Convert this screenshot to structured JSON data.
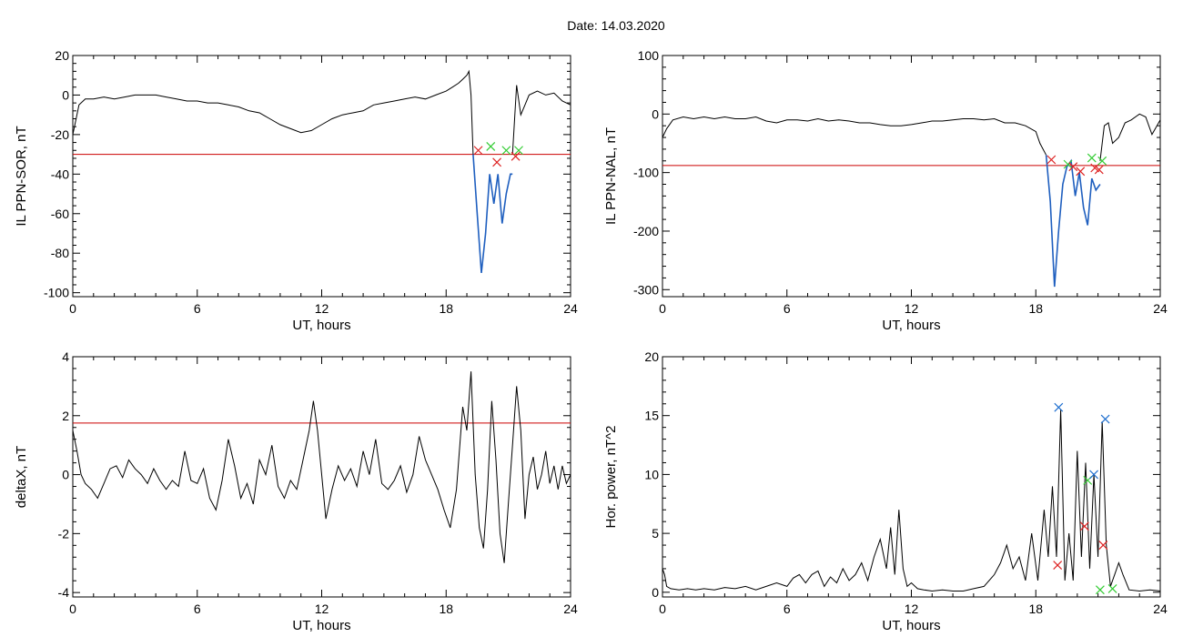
{
  "figure_title": "Date:  14.03.2020",
  "colors": {
    "trace": "#000000",
    "threshold": "#cc0000",
    "highlight": "#1f5fbf",
    "marker_red": "#dd2222",
    "marker_green": "#33cc33",
    "marker_blue": "#1f6fcf"
  },
  "chart_data": [
    {
      "id": "sor",
      "type": "line",
      "title": "",
      "xlabel": "UT, hours",
      "ylabel": "IL PPN-SOR, nT",
      "xlim": [
        0,
        24
      ],
      "ylim": [
        -102,
        20
      ],
      "xticks": [
        0,
        6,
        12,
        18,
        24
      ],
      "yticks": [
        20,
        0,
        -20,
        -40,
        -60,
        -80,
        -100
      ],
      "threshold": -30,
      "series": [
        {
          "x": [
            0,
            0.1,
            0.3,
            0.6,
            1,
            1.5,
            2,
            2.5,
            3,
            3.5,
            4,
            4.5,
            5,
            5.5,
            6,
            6.5,
            7,
            7.5,
            8,
            8.5,
            9,
            9.5,
            10,
            10.5,
            11,
            11.5,
            12,
            12.5,
            13,
            13.5,
            14,
            14.5,
            15,
            15.5,
            16,
            16.5,
            17,
            17.5,
            18,
            18.3,
            18.6,
            18.8,
            19,
            19.1,
            19.2,
            19.3
          ],
          "y": [
            -20,
            -15,
            -5,
            -2,
            -2,
            -1,
            -2,
            -1,
            0,
            0,
            0,
            -1,
            -2,
            -3,
            -3,
            -4,
            -4,
            -5,
            -6,
            -8,
            -9,
            -12,
            -15,
            -17,
            -19,
            -18,
            -15,
            -12,
            -10,
            -9,
            -8,
            -5,
            -4,
            -3,
            -2,
            -1,
            -2,
            0,
            2,
            4,
            6,
            8,
            10,
            12,
            0,
            -30
          ]
        },
        {
          "x": [
            19.3,
            19.5,
            19.7,
            19.9,
            20.1,
            20.3,
            20.5,
            20.7,
            20.9,
            21.0,
            21.1,
            21.2
          ],
          "y": [
            -30,
            -60,
            -90,
            -70,
            -40,
            -55,
            -40,
            -65,
            -50,
            -45,
            -40,
            -40
          ]
        },
        {
          "x": [
            21.2,
            21.4,
            21.6,
            21.8,
            22.0,
            22.4,
            22.8,
            23.2,
            23.6,
            24.0
          ],
          "y": [
            -30,
            5,
            -10,
            -5,
            0,
            2,
            0,
            1,
            -3,
            -5
          ]
        }
      ],
      "markers": [
        {
          "x": 19.55,
          "y": -28,
          "color": "marker_red"
        },
        {
          "x": 20.15,
          "y": -26,
          "color": "marker_green"
        },
        {
          "x": 20.45,
          "y": -34,
          "color": "marker_red"
        },
        {
          "x": 20.9,
          "y": -28,
          "color": "marker_green"
        },
        {
          "x": 21.35,
          "y": -31,
          "color": "marker_red"
        },
        {
          "x": 21.5,
          "y": -28,
          "color": "marker_green"
        }
      ]
    },
    {
      "id": "nal",
      "type": "line",
      "title": "",
      "xlabel": "UT, hours",
      "ylabel": "IL PPN-NAL, nT",
      "xlim": [
        0,
        24
      ],
      "ylim": [
        -312,
        100
      ],
      "xticks": [
        0,
        6,
        12,
        18,
        24
      ],
      "yticks": [
        100,
        0,
        -100,
        -200,
        -300
      ],
      "threshold": -88,
      "series": [
        {
          "x": [
            0,
            0.2,
            0.5,
            1,
            1.5,
            2,
            2.5,
            3,
            3.5,
            4,
            4.5,
            5,
            5.5,
            6,
            6.5,
            7,
            7.5,
            8,
            8.5,
            9,
            9.5,
            10,
            10.5,
            11,
            11.5,
            12,
            12.5,
            13,
            13.5,
            14,
            14.5,
            15,
            15.5,
            16,
            16.5,
            17,
            17.5,
            18,
            18.2,
            18.5
          ],
          "y": [
            -40,
            -25,
            -10,
            -5,
            -8,
            -5,
            -8,
            -5,
            -8,
            -8,
            -5,
            -12,
            -15,
            -10,
            -10,
            -12,
            -8,
            -12,
            -10,
            -12,
            -15,
            -15,
            -18,
            -20,
            -20,
            -18,
            -15,
            -12,
            -12,
            -10,
            -8,
            -8,
            -10,
            -8,
            -15,
            -15,
            -20,
            -30,
            -50,
            -70
          ]
        },
        {
          "x": [
            18.5,
            18.7,
            18.9,
            19.1,
            19.3,
            19.5,
            19.7,
            19.9,
            20.1,
            20.3,
            20.5,
            20.7,
            20.9,
            21.1
          ],
          "y": [
            -70,
            -150,
            -295,
            -200,
            -120,
            -90,
            -80,
            -140,
            -100,
            -160,
            -190,
            -110,
            -130,
            -120
          ]
        },
        {
          "x": [
            21.1,
            21.3,
            21.5,
            21.7,
            22.0,
            22.3,
            22.6,
            23.0,
            23.3,
            23.6,
            24.0
          ],
          "y": [
            -80,
            -20,
            -15,
            -50,
            -40,
            -15,
            -10,
            0,
            -5,
            -35,
            -10
          ]
        }
      ],
      "markers": [
        {
          "x": 18.75,
          "y": -78,
          "color": "marker_red"
        },
        {
          "x": 19.55,
          "y": -86,
          "color": "marker_green"
        },
        {
          "x": 19.8,
          "y": -90,
          "color": "marker_red"
        },
        {
          "x": 20.15,
          "y": -98,
          "color": "marker_red"
        },
        {
          "x": 20.7,
          "y": -75,
          "color": "marker_green"
        },
        {
          "x": 20.85,
          "y": -92,
          "color": "marker_red"
        },
        {
          "x": 21.05,
          "y": -95,
          "color": "marker_red"
        },
        {
          "x": 21.2,
          "y": -80,
          "color": "marker_green"
        }
      ]
    },
    {
      "id": "deltax",
      "type": "line",
      "title": "",
      "xlabel": "UT, hours",
      "ylabel": "deltaX, nT",
      "xlim": [
        0,
        24
      ],
      "ylim": [
        -4.15,
        4
      ],
      "xticks": [
        0,
        6,
        12,
        18,
        24
      ],
      "yticks": [
        4,
        2,
        0,
        -2,
        -4
      ],
      "threshold": 1.75,
      "series": [
        {
          "x": [
            0,
            0.2,
            0.4,
            0.6,
            0.9,
            1.2,
            1.5,
            1.8,
            2.1,
            2.4,
            2.7,
            3.0,
            3.3,
            3.6,
            3.9,
            4.2,
            4.5,
            4.8,
            5.1,
            5.4,
            5.7,
            6.0,
            6.3,
            6.6,
            6.9,
            7.2,
            7.5,
            7.8,
            8.1,
            8.4,
            8.7,
            9.0,
            9.3,
            9.6,
            9.9,
            10.2,
            10.5,
            10.8,
            11.1,
            11.4,
            11.6,
            11.8,
            12.0,
            12.2,
            12.5,
            12.8,
            13.1,
            13.4,
            13.7,
            14.0,
            14.3,
            14.6,
            14.9,
            15.2,
            15.5,
            15.8,
            16.1,
            16.4,
            16.7,
            17.0,
            17.3,
            17.6,
            17.9,
            18.2,
            18.5,
            18.8,
            19.0,
            19.2,
            19.4,
            19.6,
            19.8,
            20.0,
            20.2,
            20.4,
            20.6,
            20.8,
            21.0,
            21.2,
            21.4,
            21.6,
            21.8,
            22.0,
            22.2,
            22.4,
            22.6,
            22.8,
            23.0,
            23.2,
            23.4,
            23.6,
            23.8,
            24.0
          ],
          "y": [
            1.5,
            0.8,
            0.0,
            -0.3,
            -0.5,
            -0.8,
            -0.3,
            0.2,
            0.3,
            -0.1,
            0.5,
            0.2,
            0.0,
            -0.3,
            0.2,
            -0.2,
            -0.5,
            -0.2,
            -0.4,
            0.8,
            -0.2,
            -0.3,
            0.2,
            -0.8,
            -1.2,
            -0.2,
            1.2,
            0.3,
            -0.8,
            -0.3,
            -1.0,
            0.5,
            0.0,
            1.0,
            -0.4,
            -0.8,
            -0.2,
            -0.5,
            0.5,
            1.5,
            2.5,
            1.5,
            0.0,
            -1.5,
            -0.5,
            0.3,
            -0.2,
            0.2,
            -0.4,
            0.8,
            0.0,
            1.2,
            -0.3,
            -0.5,
            -0.2,
            0.3,
            -0.6,
            0.0,
            1.3,
            0.5,
            0.0,
            -0.5,
            -1.2,
            -1.8,
            -0.5,
            2.3,
            1.5,
            3.5,
            0.0,
            -1.8,
            -2.5,
            -0.5,
            2.5,
            0.5,
            -2.0,
            -3.0,
            -1.0,
            1.0,
            3.0,
            1.5,
            -1.5,
            0.0,
            0.6,
            -0.5,
            0.0,
            0.8,
            -0.3,
            0.3,
            -0.5,
            0.3,
            -0.3,
            0.0
          ]
        }
      ],
      "markers": []
    },
    {
      "id": "hpower",
      "type": "line",
      "title": "",
      "xlabel": "UT, hours",
      "ylabel": "Hor. power, nT^2",
      "xlim": [
        0,
        24
      ],
      "ylim": [
        -0.4,
        20
      ],
      "xticks": [
        0,
        6,
        12,
        18,
        24
      ],
      "yticks": [
        20,
        15,
        10,
        5,
        0
      ],
      "threshold": null,
      "series": [
        {
          "x": [
            0,
            0.1,
            0.2,
            0.4,
            0.8,
            1.2,
            1.6,
            2.0,
            2.5,
            3.0,
            3.5,
            4.0,
            4.5,
            5.0,
            5.5,
            6.0,
            6.3,
            6.6,
            6.9,
            7.2,
            7.5,
            7.8,
            8.1,
            8.4,
            8.7,
            9.0,
            9.3,
            9.6,
            9.9,
            10.2,
            10.5,
            10.8,
            11.0,
            11.2,
            11.4,
            11.6,
            11.8,
            12.0,
            12.3,
            12.6,
            13.0,
            13.5,
            14.0,
            14.5,
            15.0,
            15.5,
            16.0,
            16.3,
            16.6,
            16.9,
            17.2,
            17.5,
            17.8,
            18.1,
            18.4,
            18.6,
            18.8,
            19.0,
            19.2,
            19.4,
            19.6,
            19.8,
            20.0,
            20.2,
            20.4,
            20.6,
            20.8,
            21.0,
            21.2,
            21.4,
            21.6,
            21.8,
            22.0,
            22.2,
            22.5,
            23.0,
            23.5,
            24.0
          ],
          "y": [
            2.0,
            1.5,
            0.5,
            0.3,
            0.2,
            0.3,
            0.2,
            0.3,
            0.2,
            0.4,
            0.3,
            0.5,
            0.2,
            0.5,
            0.8,
            0.5,
            1.2,
            1.5,
            0.8,
            1.5,
            1.8,
            0.5,
            1.3,
            0.8,
            2.0,
            1.0,
            1.5,
            2.5,
            1.0,
            3.0,
            4.5,
            2.0,
            5.5,
            1.5,
            7.0,
            2.0,
            0.5,
            0.8,
            0.3,
            0.2,
            0.1,
            0.2,
            0.1,
            0.1,
            0.3,
            0.5,
            1.5,
            2.5,
            4.0,
            2.0,
            3.0,
            1.0,
            5.0,
            1.0,
            7.0,
            3.0,
            9.0,
            3.0,
            15.5,
            1.0,
            5.0,
            1.0,
            12.0,
            3.0,
            11.0,
            2.0,
            10.0,
            3.0,
            14.5,
            4.0,
            0.5,
            1.5,
            2.5,
            1.5,
            0.2,
            0.1,
            0.2,
            0.1
          ]
        }
      ],
      "markers": [
        {
          "x": 19.1,
          "y": 15.7,
          "color": "marker_blue"
        },
        {
          "x": 19.05,
          "y": 2.3,
          "color": "marker_red"
        },
        {
          "x": 20.35,
          "y": 5.6,
          "color": "marker_red"
        },
        {
          "x": 20.5,
          "y": 9.5,
          "color": "marker_green"
        },
        {
          "x": 20.8,
          "y": 10.0,
          "color": "marker_blue"
        },
        {
          "x": 21.1,
          "y": 0.2,
          "color": "marker_green"
        },
        {
          "x": 21.25,
          "y": 4.0,
          "color": "marker_red"
        },
        {
          "x": 21.35,
          "y": 14.7,
          "color": "marker_blue"
        },
        {
          "x": 21.7,
          "y": 0.3,
          "color": "marker_green"
        }
      ]
    }
  ]
}
